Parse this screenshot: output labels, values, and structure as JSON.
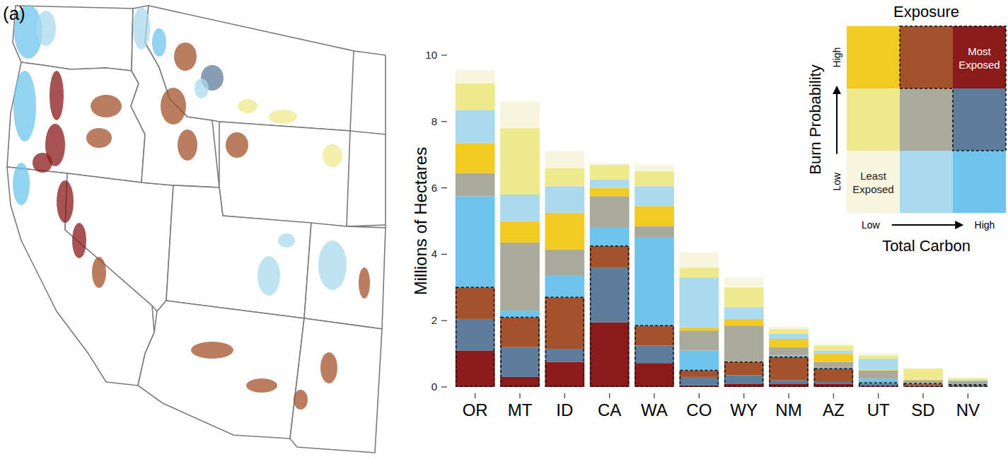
{
  "chart_data": {
    "type": "bar",
    "stacked": true,
    "grid": false,
    "panel_label": "(a)",
    "y_label": "Millions of Hectares",
    "categories": [
      "OR",
      "MT",
      "ID",
      "CA",
      "WA",
      "CO",
      "WY",
      "NM",
      "AZ",
      "UT",
      "SD",
      "NV"
    ],
    "ylim": [
      0,
      10
    ],
    "yticks": [
      0,
      2,
      4,
      6,
      8,
      10
    ],
    "legend_title": "Exposure",
    "legend_y_label": "Burn Probability",
    "legend_y_low": "Low",
    "legend_y_high": "High",
    "legend_x_label": "Total Carbon",
    "legend_x_low": "Low",
    "legend_x_high": "High",
    "series": [
      {
        "name": "Most Exposed",
        "color": "#8b1a1a",
        "values": [
          1.1,
          0.3,
          0.75,
          1.95,
          0.72,
          0.05,
          0.1,
          0.1,
          0.1,
          0.02,
          0.02,
          0.01
        ]
      },
      {
        "color": "#5e7c9b",
        "values": [
          0.95,
          0.9,
          0.4,
          1.65,
          0.53,
          0.25,
          0.25,
          0.1,
          0.05,
          0.08,
          0.04,
          0.04
        ]
      },
      {
        "color": "#a3522b",
        "values": [
          0.95,
          0.9,
          1.55,
          0.65,
          0.6,
          0.2,
          0.4,
          0.7,
          0.4,
          0.02,
          0.04,
          0.02
        ]
      },
      {
        "color": "#6ec4ec",
        "values": [
          2.75,
          0.2,
          0.65,
          0.55,
          2.65,
          0.6,
          0.02,
          0.05,
          0.05,
          0.13,
          0.02,
          0.01
        ]
      },
      {
        "color": "#a9aa9c",
        "values": [
          0.7,
          2.05,
          0.8,
          0.95,
          0.35,
          0.6,
          1.08,
          0.25,
          0.15,
          0.25,
          0.08,
          0.1
        ]
      },
      {
        "color": "#f1cb22",
        "values": [
          0.9,
          0.65,
          1.1,
          0.25,
          0.6,
          0.1,
          0.2,
          0.25,
          0.25,
          0.02,
          0.02,
          0.01
        ]
      },
      {
        "color": "#aadaec",
        "values": [
          1.0,
          0.8,
          0.8,
          0.25,
          0.6,
          1.5,
          0.35,
          0.15,
          0.1,
          0.33,
          0.02,
          0.03
        ]
      },
      {
        "color": "#eee98d",
        "values": [
          0.8,
          2.0,
          0.55,
          0.45,
          0.45,
          0.3,
          0.6,
          0.15,
          0.15,
          0.1,
          0.31,
          0.05
        ]
      },
      {
        "name": "Least Exposed",
        "color": "#f7f5dd",
        "values": [
          0.4,
          0.8,
          0.5,
          0.05,
          0.2,
          0.45,
          0.3,
          0.07,
          0.05,
          0.07,
          0.02,
          0.01
        ]
      }
    ]
  }
}
